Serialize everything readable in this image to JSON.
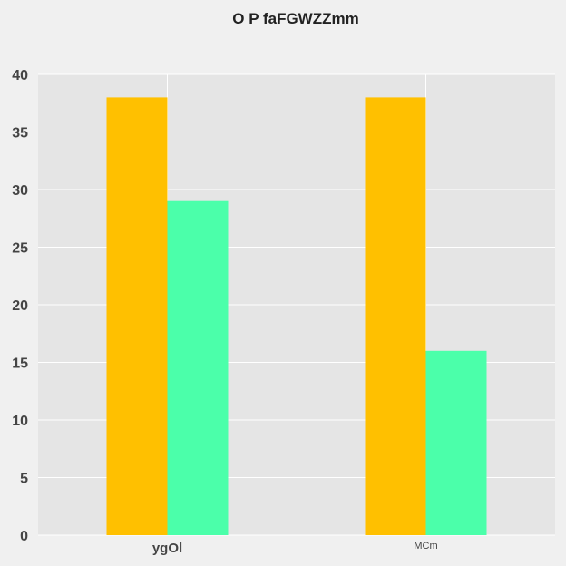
{
  "chart_data": {
    "type": "bar",
    "title": "O P faFGWZZmm",
    "categories": [
      "ygOl",
      "MCm"
    ],
    "series": [
      {
        "values": [
          38,
          38
        ],
        "color": "#ffc000"
      },
      {
        "values": [
          29,
          16
        ],
        "color": "#4bffaa"
      }
    ],
    "ylim": [
      0,
      40
    ],
    "yticks": [
      0,
      5,
      10,
      15,
      20,
      25,
      30,
      35,
      40
    ],
    "grid": true,
    "legend": "none",
    "plot_background": "#e5e5e5",
    "grid_color": "#ffffff"
  }
}
